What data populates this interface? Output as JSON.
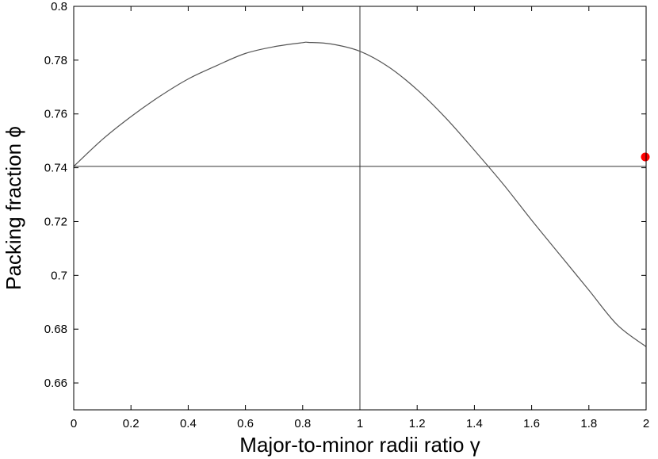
{
  "chart_data": {
    "type": "line",
    "title": "",
    "xlabel": "Major-to-minor radii ratio γ",
    "ylabel": "Packing fraction ϕ",
    "xlim": [
      0,
      2
    ],
    "ylim": [
      0.65,
      0.8
    ],
    "xticks": [
      "0",
      "0.2",
      "0.4",
      "0.6",
      "0.8",
      "1",
      "1.2",
      "1.4",
      "1.6",
      "1.8",
      "2"
    ],
    "yticks": [
      "0.66",
      "0.68",
      "0.7",
      "0.72",
      "0.74",
      "0.76",
      "0.78",
      "0.8"
    ],
    "grid": false,
    "series": [
      {
        "color": "#555555",
        "x": [
          0,
          0.1,
          0.2,
          0.3,
          0.4,
          0.5,
          0.6,
          0.7,
          0.8,
          0.82,
          0.9,
          1.0,
          1.1,
          1.2,
          1.3,
          1.4,
          1.5,
          1.6,
          1.7,
          1.8,
          1.9,
          2.0
        ],
        "y": [
          0.7405,
          0.7505,
          0.759,
          0.7665,
          0.773,
          0.778,
          0.7825,
          0.785,
          0.7865,
          0.7866,
          0.786,
          0.7833,
          0.7775,
          0.769,
          0.7585,
          0.7465,
          0.734,
          0.7205,
          0.7075,
          0.6945,
          0.6815,
          0.6735
        ]
      }
    ],
    "reference_lines": {
      "horizontal_y": 0.7405,
      "vertical_x": 1.0,
      "color": "#333333"
    },
    "markers": [
      {
        "x": 2.0,
        "y": 0.744,
        "color": "#ff0000"
      }
    ]
  }
}
